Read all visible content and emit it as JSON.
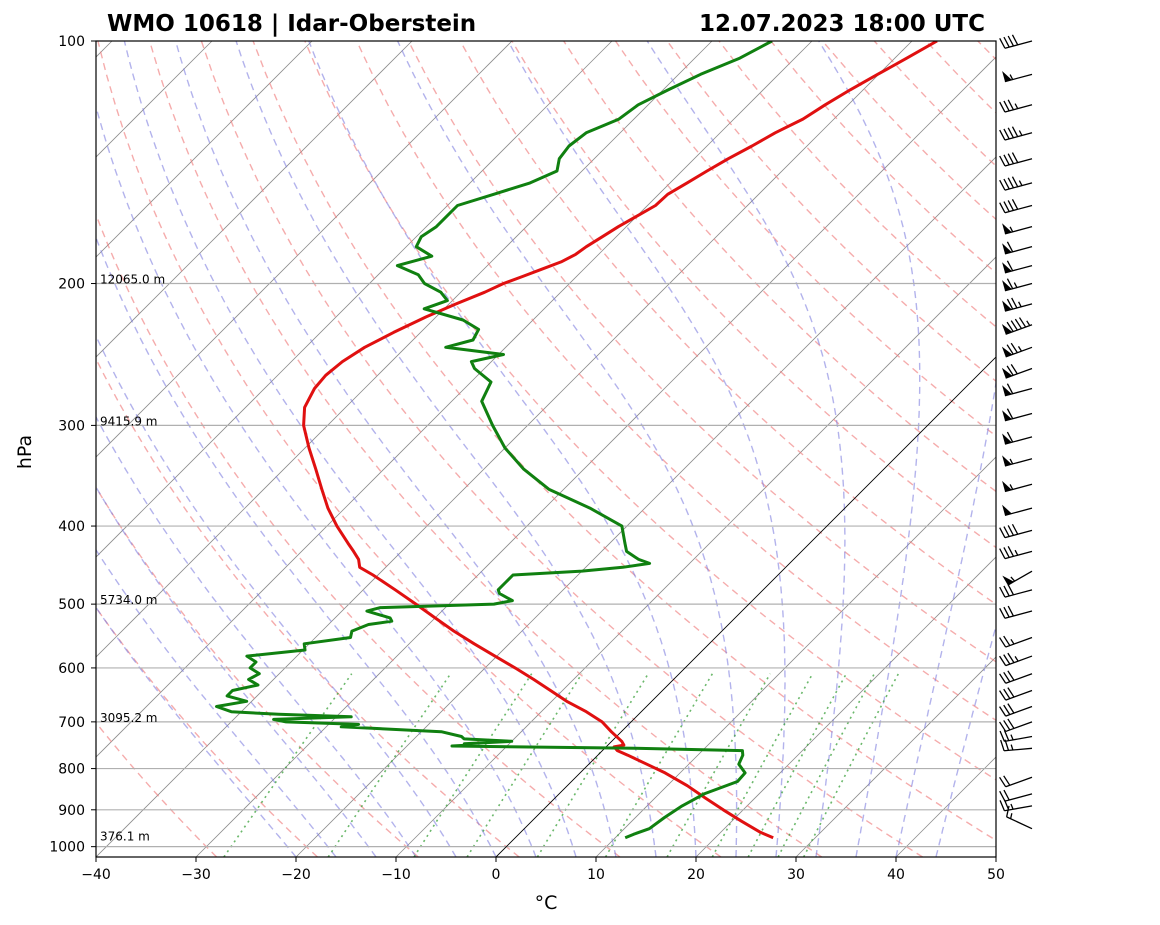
{
  "chart_data": {
    "type": "line",
    "subtype": "skew-t log-p diagram",
    "title_left": "WMO 10618 | Idar-Oberstein",
    "title_right": "12.07.2023 18:00 UTC",
    "xlabel": "°C",
    "ylabel": "hPa",
    "xlim": [
      -40,
      50
    ],
    "ylim": [
      1030,
      100
    ],
    "x_ticks": [
      -40,
      -30,
      -20,
      -10,
      0,
      10,
      20,
      30,
      40,
      50
    ],
    "x_tick_labels": [
      "−40",
      "−30",
      "−20",
      "−10",
      "0",
      "10",
      "20",
      "30",
      "40",
      "50"
    ],
    "y_ticks": [
      100,
      200,
      300,
      400,
      500,
      600,
      700,
      800,
      900,
      1000
    ],
    "y_tick_labels": [
      "100",
      "200",
      "300",
      "400",
      "500",
      "600",
      "700",
      "800",
      "900",
      "1000"
    ],
    "height_labels": [
      {
        "p": 200,
        "text": "12065.0 m"
      },
      {
        "p": 300,
        "text": "9415.9 m"
      },
      {
        "p": 500,
        "text": "5734.0 m"
      },
      {
        "p": 700,
        "text": "3095.2 m"
      },
      {
        "p": 982,
        "text": "376.1 m"
      }
    ],
    "series": [
      {
        "name": "Temperature",
        "color": "#e01010",
        "p": [
          975,
          960,
          930,
          900,
          870,
          840,
          810,
          790,
          770,
          760,
          752,
          748,
          740,
          720,
          700,
          680,
          660,
          640,
          620,
          600,
          580,
          560,
          540,
          520,
          500,
          480,
          460,
          450,
          440,
          430,
          420,
          400,
          380,
          360,
          340,
          320,
          300,
          285,
          270,
          260,
          250,
          240,
          230,
          220,
          212,
          205,
          200,
          196,
          192,
          188,
          184,
          180,
          175,
          170,
          165,
          160,
          155,
          150,
          145,
          140,
          135,
          130,
          125,
          120,
          115,
          110,
          105,
          100
        ],
        "t": [
          25.8,
          24.0,
          21.0,
          18.0,
          15.0,
          12.0,
          8.5,
          5.8,
          3.0,
          1.5,
          0.8,
          1.6,
          1.0,
          -1.0,
          -2.9,
          -5.5,
          -8.5,
          -11.2,
          -14.0,
          -17.0,
          -20.2,
          -23.5,
          -26.8,
          -30.0,
          -33.3,
          -36.8,
          -40.5,
          -42.6,
          -43.5,
          -44.8,
          -46.2,
          -49.0,
          -51.7,
          -54.2,
          -56.8,
          -59.6,
          -62.4,
          -64.1,
          -65.0,
          -65.2,
          -64.9,
          -64.1,
          -62.7,
          -61.0,
          -59.3,
          -57.6,
          -56.6,
          -55.4,
          -54.2,
          -53.0,
          -52.3,
          -52.0,
          -51.4,
          -50.8,
          -50.0,
          -49.2,
          -49.1,
          -48.3,
          -47.5,
          -46.6,
          -45.5,
          -44.5,
          -43.1,
          -42.3,
          -41.3,
          -40.1,
          -38.8,
          -37.5
        ]
      },
      {
        "name": "Dewpoint",
        "color": "#108010",
        "p": [
          975,
          965,
          950,
          920,
          890,
          860,
          830,
          810,
          790,
          770,
          760,
          755,
          750,
          748,
          745,
          740,
          735,
          730,
          720,
          710,
          705,
          700,
          695,
          690,
          685,
          680,
          670,
          660,
          650,
          640,
          630,
          620,
          610,
          600,
          590,
          580,
          570,
          560,
          550,
          540,
          530,
          525,
          520,
          510,
          505,
          500,
          495,
          490,
          485,
          480,
          470,
          460,
          455,
          450,
          445,
          440,
          430,
          420,
          400,
          380,
          360,
          340,
          320,
          300,
          280,
          265,
          255,
          250,
          245,
          240,
          235,
          228,
          222,
          215,
          210,
          205,
          200,
          195,
          190,
          185,
          180,
          175,
          170,
          165,
          160,
          155,
          150,
          145,
          140,
          135,
          130,
          125,
          120,
          115,
          110,
          105,
          100
        ],
        "t": [
          11.0,
          11.5,
          12.5,
          12.9,
          13.5,
          14.5,
          16.6,
          16.5,
          15.0,
          14.5,
          14.0,
          3.0,
          -15.5,
          -14.0,
          -14.5,
          -10.0,
          -15.0,
          -15.5,
          -18.0,
          -28.5,
          -27.0,
          -34.5,
          -36.0,
          -28.5,
          -36.0,
          -41.0,
          -43.0,
          -40.5,
          -43.0,
          -43.0,
          -41.0,
          -42.5,
          -42.0,
          -43.5,
          -43.5,
          -45.0,
          -39.8,
          -40.5,
          -36.5,
          -37.0,
          -36.0,
          -34.0,
          -34.5,
          -37.5,
          -36.5,
          -25.5,
          -24.0,
          -25.0,
          -26.0,
          -26.5,
          -26.5,
          -26.5,
          -20.0,
          -16.3,
          -14.0,
          -15.5,
          -17.5,
          -18.5,
          -20.5,
          -25.5,
          -31.5,
          -36.0,
          -40.0,
          -43.5,
          -47.0,
          -48.0,
          -51.0,
          -52.0,
          -49.5,
          -56.0,
          -54.0,
          -54.5,
          -57.0,
          -62.0,
          -60.5,
          -62.0,
          -64.5,
          -66.0,
          -69.0,
          -66.5,
          -69.0,
          -69.5,
          -69.0,
          -69.0,
          -69.0,
          -66.5,
          -64.0,
          -62.5,
          -63.5,
          -63.8,
          -63.4,
          -61.5,
          -61.0,
          -59.5,
          -57.8,
          -55.5,
          -54.0
        ]
      }
    ],
    "wind_barbs": [
      {
        "p": 100,
        "dir": 255,
        "speed_kt": 40
      },
      {
        "p": 110,
        "dir": 255,
        "speed_kt": 55
      },
      {
        "p": 120,
        "dir": 255,
        "speed_kt": 35
      },
      {
        "p": 130,
        "dir": 255,
        "speed_kt": 45
      },
      {
        "p": 140,
        "dir": 255,
        "speed_kt": 40
      },
      {
        "p": 150,
        "dir": 255,
        "speed_kt": 45
      },
      {
        "p": 160,
        "dir": 255,
        "speed_kt": 40
      },
      {
        "p": 170,
        "dir": 255,
        "speed_kt": 55
      },
      {
        "p": 180,
        "dir": 255,
        "speed_kt": 60
      },
      {
        "p": 190,
        "dir": 255,
        "speed_kt": 60
      },
      {
        "p": 200,
        "dir": 255,
        "speed_kt": 65
      },
      {
        "p": 212,
        "dir": 255,
        "speed_kt": 75
      },
      {
        "p": 225,
        "dir": 250,
        "speed_kt": 95
      },
      {
        "p": 240,
        "dir": 250,
        "speed_kt": 75
      },
      {
        "p": 255,
        "dir": 250,
        "speed_kt": 70
      },
      {
        "p": 270,
        "dir": 255,
        "speed_kt": 60
      },
      {
        "p": 290,
        "dir": 255,
        "speed_kt": 60
      },
      {
        "p": 310,
        "dir": 255,
        "speed_kt": 60
      },
      {
        "p": 330,
        "dir": 255,
        "speed_kt": 55
      },
      {
        "p": 355,
        "dir": 255,
        "speed_kt": 55
      },
      {
        "p": 380,
        "dir": 255,
        "speed_kt": 50
      },
      {
        "p": 405,
        "dir": 255,
        "speed_kt": 40
      },
      {
        "p": 430,
        "dir": 255,
        "speed_kt": 35
      },
      {
        "p": 455,
        "dir": 240,
        "speed_kt": 55
      },
      {
        "p": 480,
        "dir": 255,
        "speed_kt": 30
      },
      {
        "p": 510,
        "dir": 255,
        "speed_kt": 30
      },
      {
        "p": 550,
        "dir": 250,
        "speed_kt": 25
      },
      {
        "p": 580,
        "dir": 250,
        "speed_kt": 35
      },
      {
        "p": 610,
        "dir": 250,
        "speed_kt": 30
      },
      {
        "p": 640,
        "dir": 250,
        "speed_kt": 30
      },
      {
        "p": 670,
        "dir": 250,
        "speed_kt": 30
      },
      {
        "p": 700,
        "dir": 250,
        "speed_kt": 30
      },
      {
        "p": 730,
        "dir": 260,
        "speed_kt": 25
      },
      {
        "p": 755,
        "dir": 265,
        "speed_kt": 25
      },
      {
        "p": 820,
        "dir": 250,
        "speed_kt": 20
      },
      {
        "p": 860,
        "dir": 255,
        "speed_kt": 20
      },
      {
        "p": 890,
        "dir": 260,
        "speed_kt": 25
      },
      {
        "p": 950,
        "dir": 295,
        "speed_kt": 15
      }
    ],
    "background_lines": {
      "isotherms": "gray solid",
      "dry_adiabats": "red dashed",
      "moist_adiabats": "blue dashed",
      "mixing_ratio": "green dotted",
      "zero_isotherm": "black solid"
    }
  }
}
